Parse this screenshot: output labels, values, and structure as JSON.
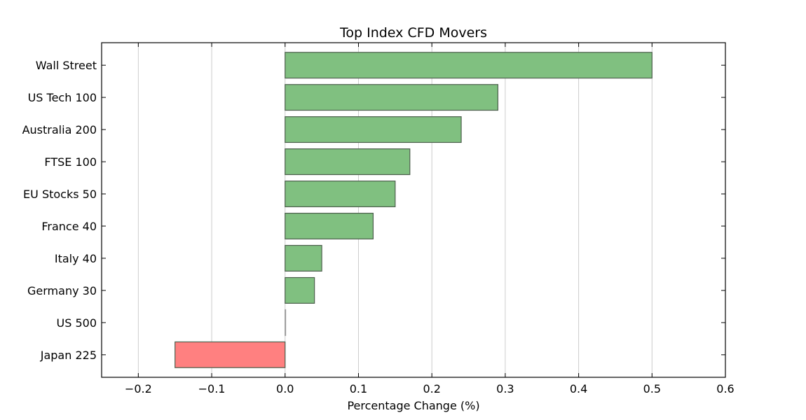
{
  "chart_data": {
    "type": "bar",
    "orientation": "horizontal",
    "title": "Top Index CFD Movers",
    "xlabel": "Percentage Change (%)",
    "ylabel": "",
    "xlim": [
      -0.25,
      0.6
    ],
    "xticks": [
      -0.2,
      -0.1,
      0.0,
      0.1,
      0.2,
      0.3,
      0.4,
      0.5,
      0.6
    ],
    "xtick_labels": [
      "−0.2",
      "−0.1",
      "0.0",
      "0.1",
      "0.2",
      "0.3",
      "0.4",
      "0.5",
      "0.6"
    ],
    "categories": [
      "Wall Street",
      "US Tech 100",
      "Australia 200",
      "FTSE 100",
      "EU Stocks 50",
      "France 40",
      "Italy 40",
      "Germany 30",
      "US 500",
      "Japan 225"
    ],
    "values": [
      0.5,
      0.29,
      0.24,
      0.17,
      0.15,
      0.12,
      0.05,
      0.04,
      0.0,
      -0.15
    ],
    "grid": "vertical",
    "colors": {
      "positive": "#80c080",
      "negative": "#ff8080",
      "edge": "#4d5f4d"
    }
  }
}
